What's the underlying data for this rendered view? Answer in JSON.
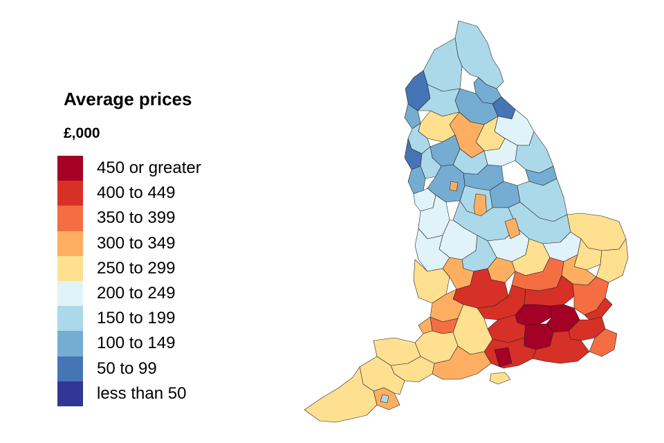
{
  "legend": {
    "title": "Average prices",
    "unit": "£,000",
    "items": [
      {
        "label": "450 or greater",
        "color": "#a50026"
      },
      {
        "label": "400 to 449",
        "color": "#d73027"
      },
      {
        "label": "350 to 399",
        "color": "#f46d43"
      },
      {
        "label": "300 to 349",
        "color": "#fdae61"
      },
      {
        "label": "250 to 299",
        "color": "#fee090"
      },
      {
        "label": "200 to 249",
        "color": "#e0f3f8"
      },
      {
        "label": "150 to 199",
        "color": "#abd9e9"
      },
      {
        "label": "100 to 149",
        "color": "#74add1"
      },
      {
        "label": "50 to 99",
        "color": "#4575b4"
      },
      {
        "label": "less than 50",
        "color": "#313695"
      }
    ]
  }
}
